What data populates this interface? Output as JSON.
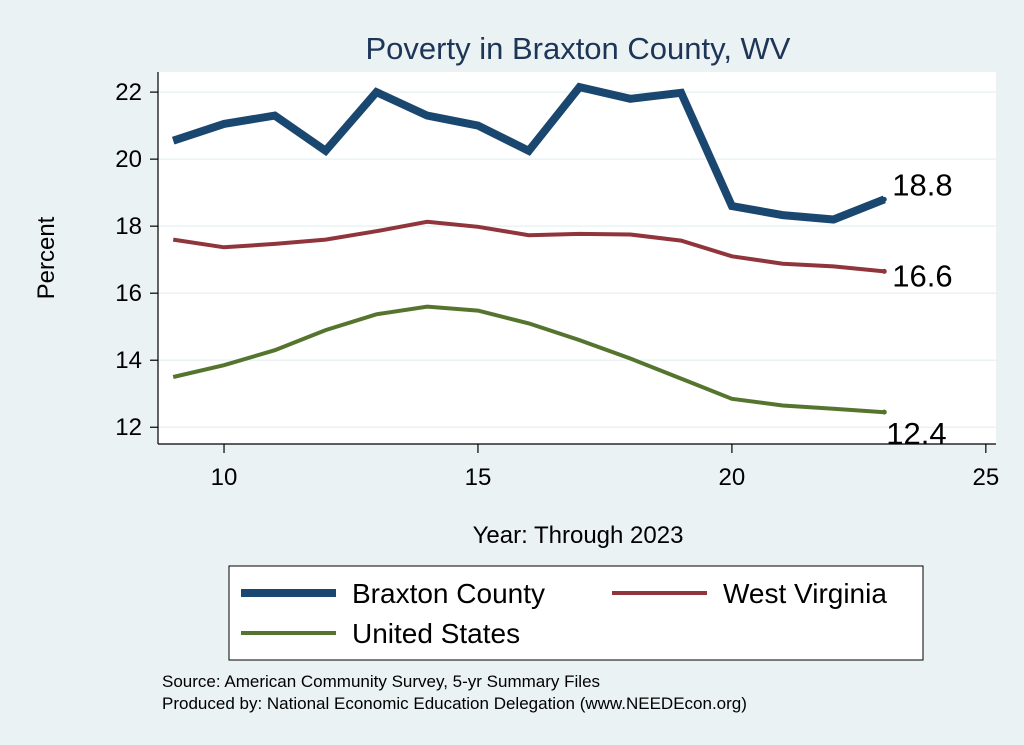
{
  "chart_data": {
    "type": "line",
    "title": "Poverty in Braxton County, WV",
    "xlabel": "Year: Through 2023",
    "ylabel": "Percent",
    "xlim": [
      8.7,
      25.2
    ],
    "ylim": [
      11.5,
      22.6
    ],
    "xticks": [
      10,
      15,
      20,
      25
    ],
    "yticks": [
      12,
      14,
      16,
      18,
      20,
      22
    ],
    "x": [
      9,
      10,
      11,
      12,
      13,
      14,
      15,
      16,
      17,
      18,
      19,
      20,
      21,
      22,
      23
    ],
    "series": [
      {
        "name": "Braxton County",
        "color": "#1a476f",
        "values": [
          20.55,
          21.05,
          21.3,
          20.25,
          22.0,
          21.3,
          21.0,
          20.25,
          22.15,
          21.8,
          21.98,
          18.6,
          18.33,
          18.2,
          18.8
        ],
        "end_label": "18.8"
      },
      {
        "name": "West Virginia",
        "color": "#90353b",
        "values": [
          17.6,
          17.37,
          17.47,
          17.6,
          17.85,
          18.13,
          17.98,
          17.73,
          17.77,
          17.75,
          17.57,
          17.1,
          16.88,
          16.8,
          16.65
        ],
        "end_label": "16.6"
      },
      {
        "name": "United States",
        "color": "#55752f",
        "values": [
          13.5,
          13.85,
          14.3,
          14.9,
          15.37,
          15.6,
          15.48,
          15.1,
          14.6,
          14.05,
          13.45,
          12.85,
          12.65,
          12.55,
          12.45
        ],
        "end_label": "12.4"
      }
    ],
    "notes": [
      "Source: American Community Survey, 5-yr Summary Files",
      "Produced by: National Economic Education Delegation (www.NEEDEcon.org)"
    ]
  }
}
